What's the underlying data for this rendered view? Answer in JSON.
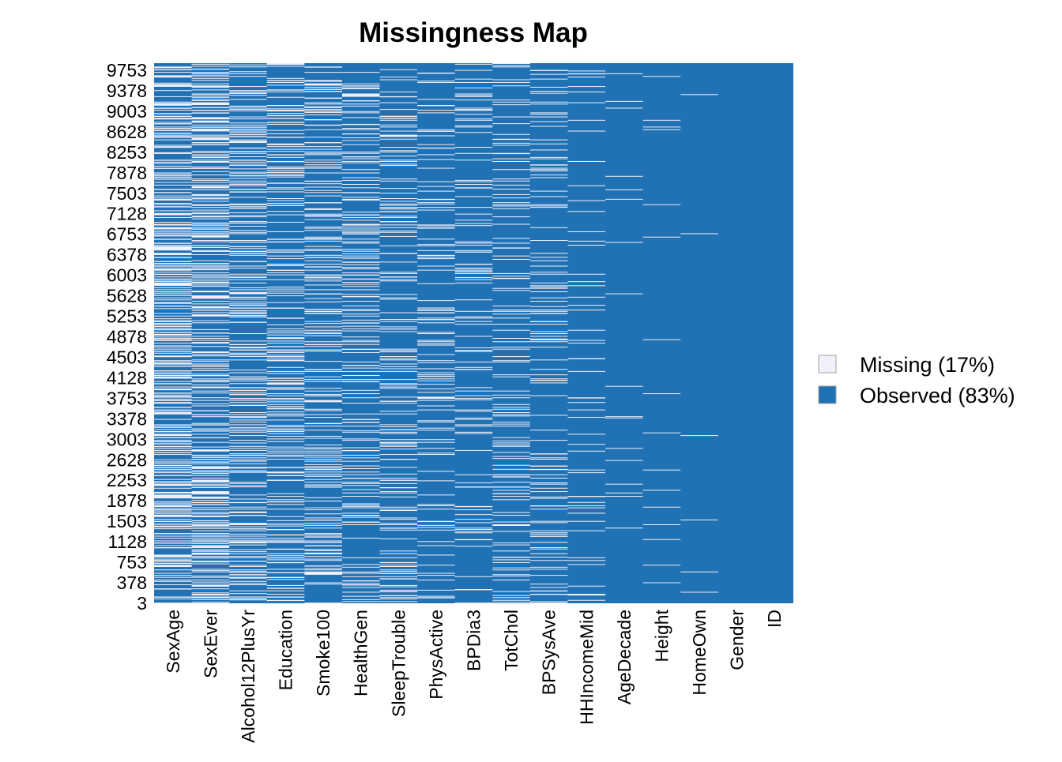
{
  "chart_data": {
    "type": "heatmap",
    "title": "Missingness Map",
    "xlabel": "",
    "ylabel": "",
    "columns": [
      {
        "name": "SexAge",
        "missing_fraction": 0.48
      },
      {
        "name": "SexEver",
        "missing_fraction": 0.47
      },
      {
        "name": "Alcohol12PlusYr",
        "missing_fraction": 0.33
      },
      {
        "name": "Education",
        "missing_fraction": 0.28
      },
      {
        "name": "Smoke100",
        "missing_fraction": 0.28
      },
      {
        "name": "HealthGen",
        "missing_fraction": 0.25
      },
      {
        "name": "SleepTrouble",
        "missing_fraction": 0.22
      },
      {
        "name": "PhysActive",
        "missing_fraction": 0.16
      },
      {
        "name": "BPDia3",
        "missing_fraction": 0.14
      },
      {
        "name": "TotChol",
        "missing_fraction": 0.15
      },
      {
        "name": "BPSysAve",
        "missing_fraction": 0.14
      },
      {
        "name": "HHIncomeMid",
        "missing_fraction": 0.08
      },
      {
        "name": "AgeDecade",
        "missing_fraction": 0.03
      },
      {
        "name": "Height",
        "missing_fraction": 0.02
      },
      {
        "name": "HomeOwn",
        "missing_fraction": 0.006
      },
      {
        "name": "Gender",
        "missing_fraction": 0
      },
      {
        "name": "ID",
        "missing_fraction": 0
      }
    ],
    "y_tick_labels": [
      "9753",
      "9378",
      "9003",
      "8628",
      "8253",
      "7878",
      "7503",
      "7128",
      "6753",
      "6378",
      "6003",
      "5628",
      "5253",
      "4878",
      "4503",
      "4128",
      "3753",
      "3378",
      "3003",
      "2628",
      "2253",
      "1878",
      "1503",
      "1128",
      "753",
      "378",
      "3"
    ],
    "legend": {
      "position": "right",
      "items": [
        {
          "label": "Missing (17%)",
          "color": "#f0f0f8"
        },
        {
          "label": "Observed (83%)",
          "color": "#2171b5"
        }
      ]
    },
    "grid": false
  }
}
